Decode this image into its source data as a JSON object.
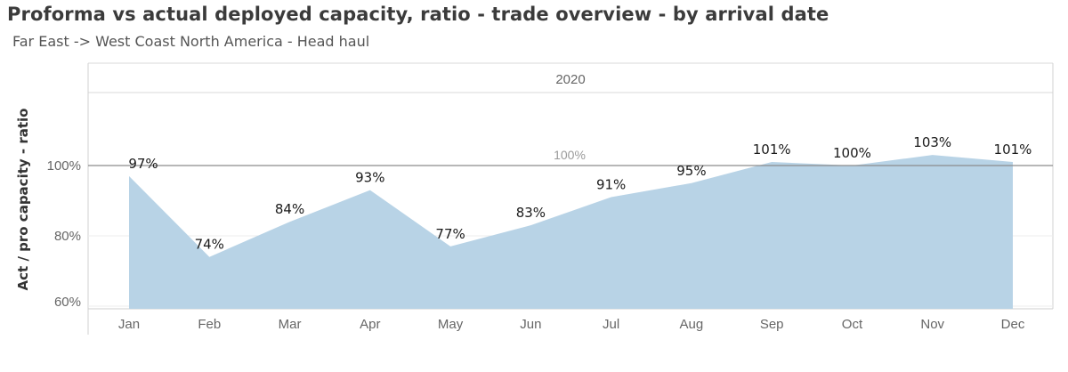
{
  "header": {
    "title": "Proforma vs actual deployed capacity, ratio - trade overview - by arrival date",
    "subtitle": "Far East -> West Coast North America - Head haul"
  },
  "colors": {
    "area_fill": "#b8d3e6",
    "reference_line": "#8c8c8c",
    "axis_text": "#666666",
    "label_text": "#1a1a1a"
  },
  "chart_data": {
    "type": "area",
    "panel_label": "2020",
    "categories": [
      "Jan",
      "Feb",
      "Mar",
      "Apr",
      "May",
      "Jun",
      "Jul",
      "Aug",
      "Sep",
      "Oct",
      "Nov",
      "Dec"
    ],
    "series": [
      {
        "values": [
          97,
          74,
          84,
          93,
          77,
          83,
          91,
          95,
          101,
          100,
          103,
          101
        ]
      }
    ],
    "value_labels": [
      "97%",
      "74%",
      "84%",
      "93%",
      "77%",
      "83%",
      "91%",
      "95%",
      "101%",
      "100%",
      "103%",
      "101%"
    ],
    "ylabel": "Act / pro capacity - ratio",
    "yticks": [
      60,
      80,
      100
    ],
    "ytick_labels": [
      "60%",
      "80%",
      "100%"
    ],
    "ylim": [
      57,
      120
    ],
    "reference_line": {
      "value": 100,
      "label": "100%"
    },
    "grid": true
  }
}
